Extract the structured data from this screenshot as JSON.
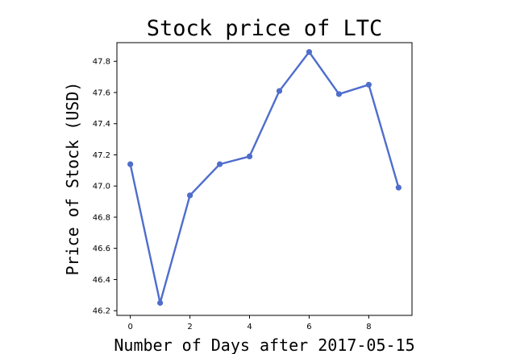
{
  "chart_data": {
    "type": "line",
    "title": "Stock price of LTC",
    "xlabel": "Number of Days after 2017-05-15",
    "ylabel": "Price of Stock (USD)",
    "x": [
      0,
      1,
      2,
      3,
      4,
      5,
      6,
      7,
      8,
      9
    ],
    "series": [
      {
        "values": [
          47.14,
          46.25,
          46.94,
          47.14,
          47.19,
          47.61,
          47.86,
          47.59,
          47.65,
          46.99
        ]
      }
    ],
    "xticks": [
      "0",
      "2",
      "4",
      "6",
      "8"
    ],
    "yticks": [
      "46.2",
      "46.4",
      "46.6",
      "46.8",
      "47.0",
      "47.2",
      "47.4",
      "47.6",
      "47.8"
    ],
    "xlim": [
      -0.45,
      9.45
    ],
    "ylim": [
      46.17,
      47.92
    ],
    "grid": false,
    "line_color": "#4f6dcc"
  }
}
